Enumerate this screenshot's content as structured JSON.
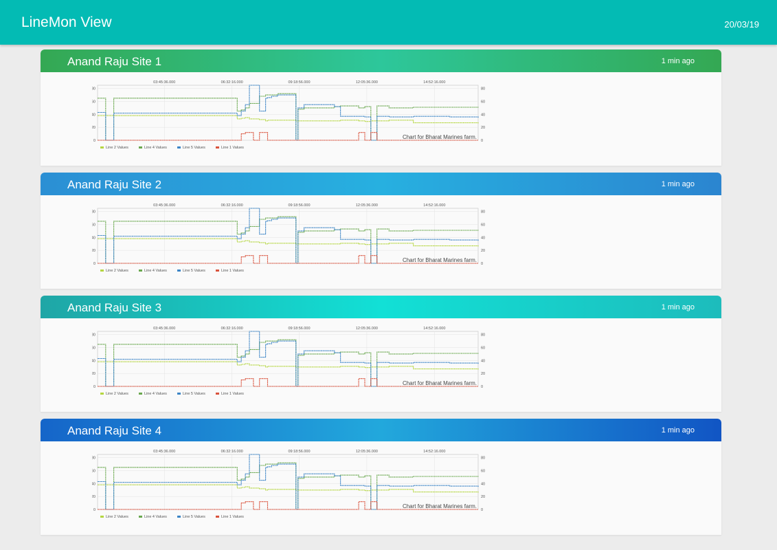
{
  "app": {
    "title": "LineMon View",
    "date": "20/03/19"
  },
  "colors": {
    "appbar": "#03bbb4",
    "line2": "#b5d641",
    "line4": "#6aa84f",
    "line5": "#3d85c6",
    "line1": "#d9533d"
  },
  "chart_data": {
    "type": "line",
    "title": "Chart for Bharat Marines farm.",
    "x": [
      "01:00",
      "01:20",
      "01:40",
      "06:30",
      "06:45",
      "06:55",
      "07:05",
      "07:15",
      "07:25",
      "07:40",
      "07:55",
      "08:00",
      "08:10",
      "08:25",
      "09:10",
      "09:15",
      "09:30",
      "10:45",
      "11:00",
      "11:45",
      "12:00",
      "12:15",
      "12:30",
      "13:00",
      "14:00",
      "15:30",
      "16:40"
    ],
    "x_ticks": [
      "03:45:36.000",
      "06:32:16.000",
      "09:18:56.000",
      "12:05:36.000",
      "14:52:16.000"
    ],
    "y_ticks_left": [
      "80",
      "60",
      "40",
      "20",
      "0"
    ],
    "y_ticks_right": [
      "80",
      "60",
      "40",
      "20",
      "0"
    ],
    "ylim": [
      0,
      85
    ],
    "legend_position": "bottom-left",
    "grid": true,
    "series": [
      {
        "name": "Line 2 Values",
        "values": [
          38,
          38,
          38,
          38,
          33,
          34,
          35,
          33,
          33,
          32,
          30,
          31,
          31,
          31,
          30,
          30,
          30,
          30,
          31,
          30,
          29,
          30,
          30,
          31,
          27,
          27,
          26
        ]
      },
      {
        "name": "Line 4 Values",
        "values": [
          65,
          0,
          65,
          65,
          45,
          47,
          50,
          57,
          57,
          68,
          70,
          70,
          70,
          72,
          0,
          48,
          50,
          52,
          53,
          50,
          52,
          0,
          53,
          50,
          51,
          51,
          50
        ]
      },
      {
        "name": "Line 5 Values",
        "values": [
          43,
          0,
          42,
          42,
          38,
          45,
          55,
          85,
          85,
          45,
          65,
          66,
          68,
          70,
          0,
          50,
          55,
          52,
          37,
          37,
          36,
          0,
          37,
          36,
          37,
          36,
          35
        ]
      },
      {
        "name": "Line 1 Values",
        "values": [
          0,
          0,
          0,
          0,
          0,
          10,
          12,
          12,
          0,
          12,
          12,
          0,
          0,
          0,
          0,
          0,
          0,
          0,
          0,
          12,
          0,
          12,
          0,
          0,
          0,
          0,
          0
        ]
      }
    ]
  },
  "sites": [
    {
      "name": "Anand Raju Site 1",
      "updated": "1 min ago",
      "gradient": [
        "#34a853",
        "#2dc79b",
        "#34a853"
      ]
    },
    {
      "name": "Anand Raju Site 2",
      "updated": "1 min ago",
      "gradient": [
        "#2b8fd4",
        "#27b0e0",
        "#2b85d0"
      ]
    },
    {
      "name": "Anand Raju Site 3",
      "updated": "1 min ago",
      "gradient": [
        "#1fa6a6",
        "#12e0d6",
        "#1dbcbc"
      ]
    },
    {
      "name": "Anand Raju Site 4",
      "updated": "1 min ago",
      "gradient": [
        "#1565c9",
        "#22a8dc",
        "#1155c4"
      ]
    }
  ]
}
